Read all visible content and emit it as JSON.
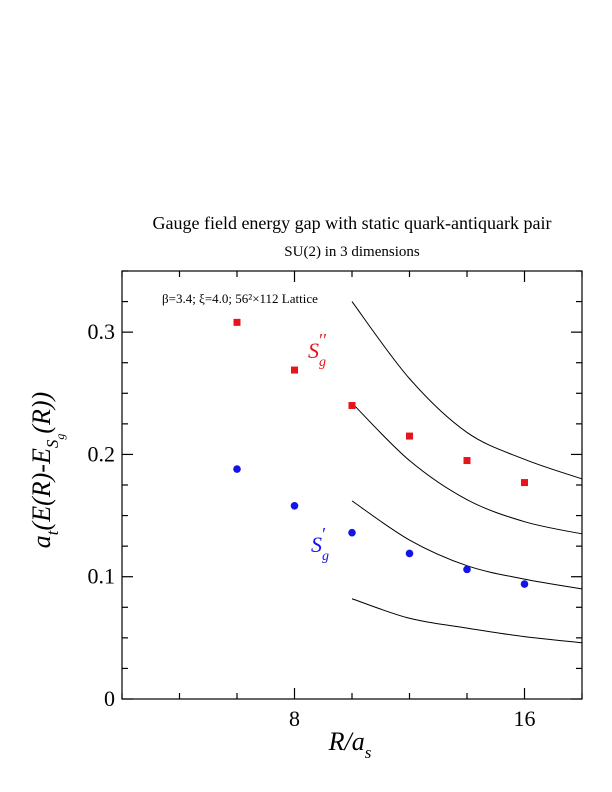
{
  "chart_data": {
    "type": "scatter",
    "title": "Gauge field energy gap with static quark-antiquark pair",
    "subtitle": "SU(2) in 3 dimensions",
    "annotation": "β=3.4; ξ=4.0; 56²×112 Lattice",
    "xlabel": "R/a_s",
    "ylabel": "a_t(E(R)-E_Sg(R))",
    "xlim": [
      2,
      18
    ],
    "ylim": [
      0,
      0.35
    ],
    "x_ticks": [
      8,
      16
    ],
    "y_ticks": [
      0,
      0.1,
      0.2,
      0.3
    ],
    "grid": false,
    "series": [
      {
        "name": "S_g''",
        "label": "S''g",
        "color": "#e8141b",
        "marker": "square",
        "x": [
          6,
          8,
          10,
          12,
          14,
          16
        ],
        "y": [
          0.308,
          0.269,
          0.24,
          0.215,
          0.195,
          0.177
        ]
      },
      {
        "name": "S_g'",
        "label": "S'g",
        "color": "#1414e6",
        "marker": "circle",
        "x": [
          6,
          8,
          10,
          12,
          14,
          16
        ],
        "y": [
          0.188,
          0.158,
          0.136,
          0.119,
          0.106,
          0.094
        ]
      }
    ],
    "curves": [
      {
        "x": [
          10,
          12,
          14,
          16,
          18
        ],
        "y": [
          0.325,
          0.262,
          0.218,
          0.196,
          0.18
        ]
      },
      {
        "x": [
          10,
          12,
          14,
          16,
          18
        ],
        "y": [
          0.242,
          0.195,
          0.163,
          0.145,
          0.135
        ]
      },
      {
        "x": [
          10,
          12,
          14,
          16,
          18
        ],
        "y": [
          0.162,
          0.13,
          0.109,
          0.098,
          0.09
        ]
      },
      {
        "x": [
          10,
          12,
          14,
          16,
          18
        ],
        "y": [
          0.082,
          0.066,
          0.058,
          0.051,
          0.046
        ]
      }
    ]
  }
}
